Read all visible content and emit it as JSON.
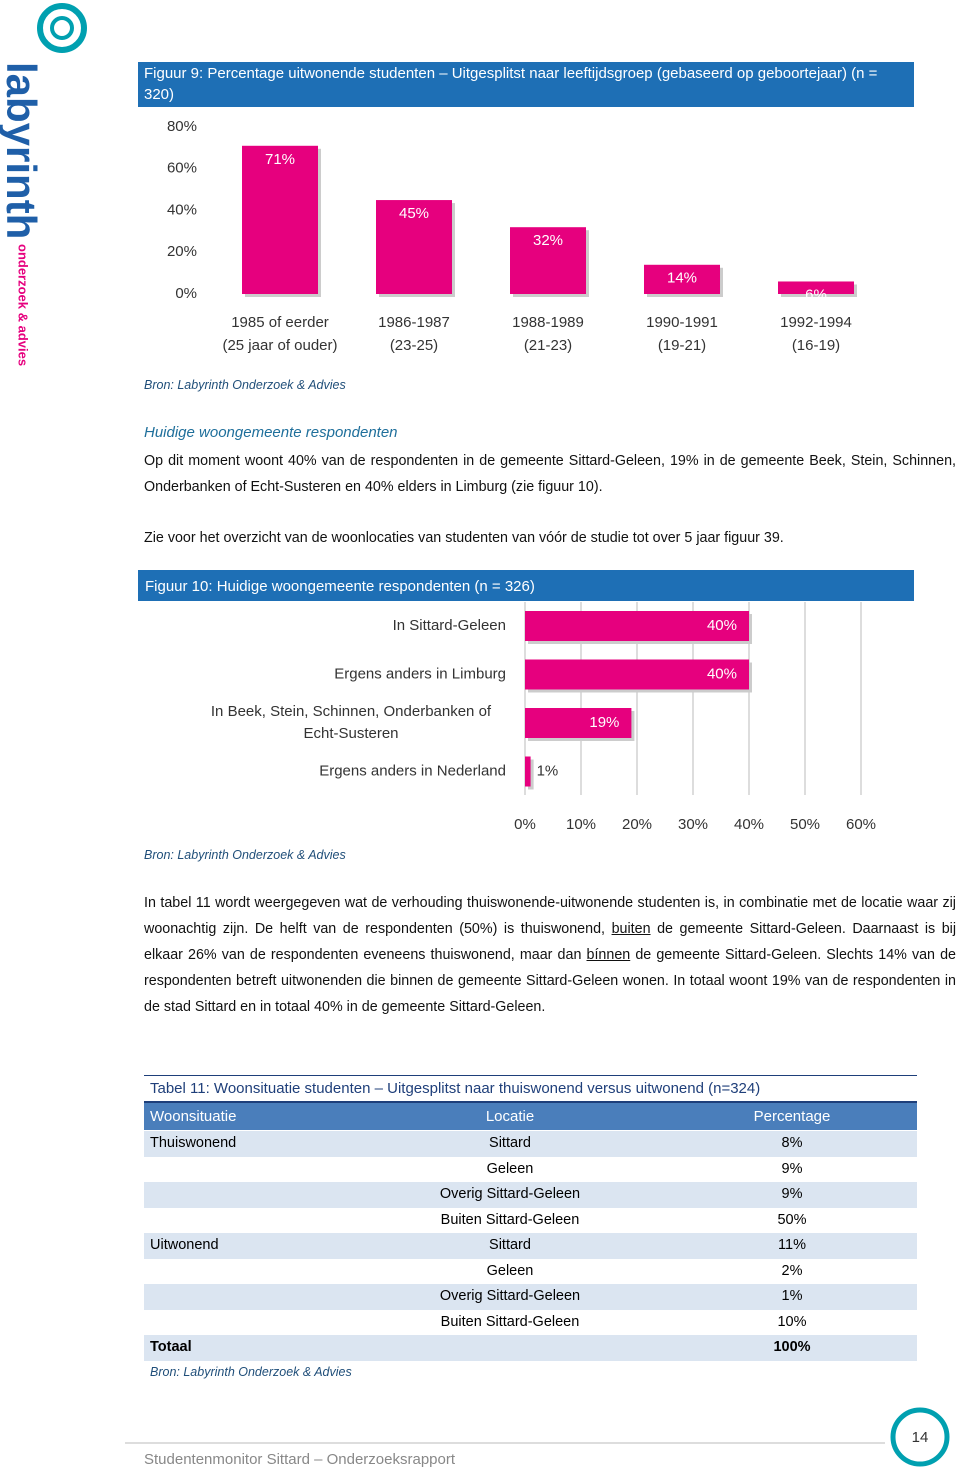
{
  "logo": {
    "name": "labyrinth",
    "tagline": "onderzoek & advies"
  },
  "chart_data": [
    {
      "type": "bar",
      "title": "Figuur 9: Percentage uitwonende studenten – Uitgesplitst naar leeftijdsgroep (gebaseerd op geboortejaar) (n = 320)",
      "categories": [
        [
          "1985 of eerder",
          "(25 jaar of ouder)"
        ],
        [
          "1986-1987",
          "(23-25)"
        ],
        [
          "1988-1989",
          "(21-23)"
        ],
        [
          "1990-1991",
          "(19-21)"
        ],
        [
          "1992-1994",
          "(16-19)"
        ]
      ],
      "values": [
        71,
        45,
        32,
        14,
        6
      ],
      "value_labels": [
        "71%",
        "45%",
        "32%",
        "14%",
        "6%"
      ],
      "color": "#e6007e",
      "ylim": [
        0,
        80
      ],
      "yticks": [
        {
          "value": 0,
          "label": "0%"
        },
        {
          "value": 20,
          "label": "20%"
        },
        {
          "value": 40,
          "label": "40%"
        },
        {
          "value": 60,
          "label": "60%"
        },
        {
          "value": 80,
          "label": "80%"
        }
      ],
      "source": "Bron: Labyrinth Onderzoek & Advies"
    },
    {
      "type": "hbar",
      "title": "Figuur 10: Huidige woongemeente respondenten  (n = 326)",
      "categories": [
        [
          "In Sittard-Geleen"
        ],
        [
          "Ergens anders in Limburg"
        ],
        [
          "In Beek, Stein, Schinnen, Onderbanken of",
          "Echt-Susteren"
        ],
        [
          "Ergens anders in Nederland"
        ]
      ],
      "values": [
        40,
        40,
        19,
        1
      ],
      "value_labels": [
        "40%",
        "40%",
        "19%",
        "1%"
      ],
      "color": "#e6007e",
      "xlim": [
        0,
        60
      ],
      "xticks": [
        {
          "value": 0,
          "label": "0%"
        },
        {
          "value": 10,
          "label": "10%"
        },
        {
          "value": 20,
          "label": "20%"
        },
        {
          "value": 30,
          "label": "30%"
        },
        {
          "value": 40,
          "label": "40%"
        },
        {
          "value": 50,
          "label": "50%"
        },
        {
          "value": 60,
          "label": "60%"
        }
      ],
      "grid": true,
      "source": "Bron: Labyrinth Onderzoek & Advies"
    }
  ],
  "document": {
    "heading": "Huidige woongemeente respondenten",
    "paragraphs": [
      [
        "Op dit moment woont 40% van de respondenten in de gemeente Sittard-Geleen, 19% in de gemeente Beek, Stein, Schinnen, Onderbanken of Echt-Susteren en 40% elders in Limburg (zie figuur 10)."
      ],
      [
        "Zie voor het overzicht van de woonlocaties van studenten van vóór de studie tot over 5 jaar figuur 39."
      ],
      [
        "In tabel 11 wordt weergegeven wat de verhouding thuiswonende-uitwonende studenten is, in combinatie met de locatie waar zij woonachtig zijn. De helft van de respondenten (50%) is thuiswonend, ",
        "buiten",
        " de gemeente Sittard-Geleen. Daarnaast is bij elkaar 26% van de respondenten eveneens thuiswonend, maar dan ",
        "bínnen",
        " de gemeente Sittard-Geleen. Slechts 14% van de respondenten betreft uitwonenden die binnen de gemeente Sittard-Geleen wonen. In totaal woont 19% van de respondenten in de stad Sittard en in totaal 40% in de gemeente Sittard-Geleen."
      ]
    ]
  },
  "table": {
    "title": "Tabel 11: Woonsituatie studenten – Uitgesplitst naar thuiswonend versus uitwonend (n=324)",
    "header": [
      "Woonsituatie",
      "Locatie",
      "Percentage"
    ],
    "groups": [
      {
        "label": "Thuiswonend",
        "rows": [
          [
            "Sittard",
            "8%"
          ],
          [
            "Geleen",
            "9%"
          ],
          [
            "Overig Sittard-Geleen",
            "9%"
          ],
          [
            "Buiten Sittard-Geleen",
            "50%"
          ]
        ]
      },
      {
        "label": "Uitwonend",
        "rows": [
          [
            "Sittard",
            "11%"
          ],
          [
            "Geleen",
            "2%"
          ],
          [
            "Overig Sittard-Geleen",
            "1%"
          ],
          [
            "Buiten Sittard-Geleen",
            "10%"
          ]
        ]
      }
    ],
    "total": [
      "Totaal",
      "100%"
    ],
    "source": "Bron: Labyrinth Onderzoek & Advies"
  },
  "footer": {
    "text": "Studentenmonitor Sittard – Onderzoeksrapport",
    "page": "14"
  }
}
